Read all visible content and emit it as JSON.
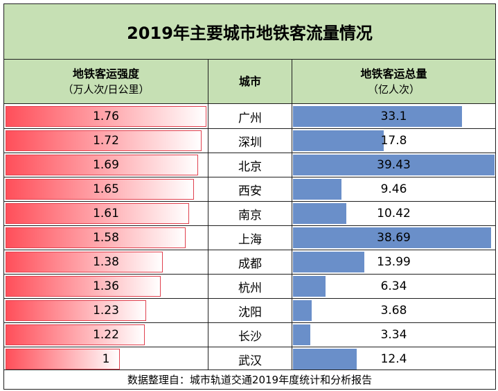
{
  "title": "2019年主要城市地铁客流量情况",
  "headers": {
    "intensity_main": "地铁客运强度",
    "intensity_unit": "（万人次/日公里）",
    "city": "城市",
    "total_main": "地铁客运总量",
    "total_unit": "（亿人次）"
  },
  "footer": "数据整理自：城市轨道交通2019年度统计和分析报告",
  "colors": {
    "header_bg": "#c6e0b4",
    "red_bar": "#ff4f5a",
    "blue_bar": "#6a8fc9"
  },
  "chart_data": {
    "type": "table",
    "title": "2019年主要城市地铁客流量情况",
    "columns": [
      "地铁客运强度（万人次/日公里）",
      "城市",
      "地铁客运总量（亿人次）"
    ],
    "categories": [
      "广州",
      "深圳",
      "北京",
      "西安",
      "南京",
      "上海",
      "成都",
      "杭州",
      "沈阳",
      "长沙",
      "武汉"
    ],
    "series": [
      {
        "name": "地铁客运强度",
        "values": [
          1.76,
          1.72,
          1.69,
          1.65,
          1.61,
          1.58,
          1.38,
          1.36,
          1.23,
          1.22,
          1
        ]
      },
      {
        "name": "地铁客运总量",
        "values": [
          33.1,
          17.8,
          39.43,
          9.46,
          10.42,
          38.69,
          13.99,
          6.34,
          3.68,
          3.34,
          12.4
        ]
      }
    ],
    "intensity_scale_max": 1.76,
    "total_scale_max": 39.43
  }
}
